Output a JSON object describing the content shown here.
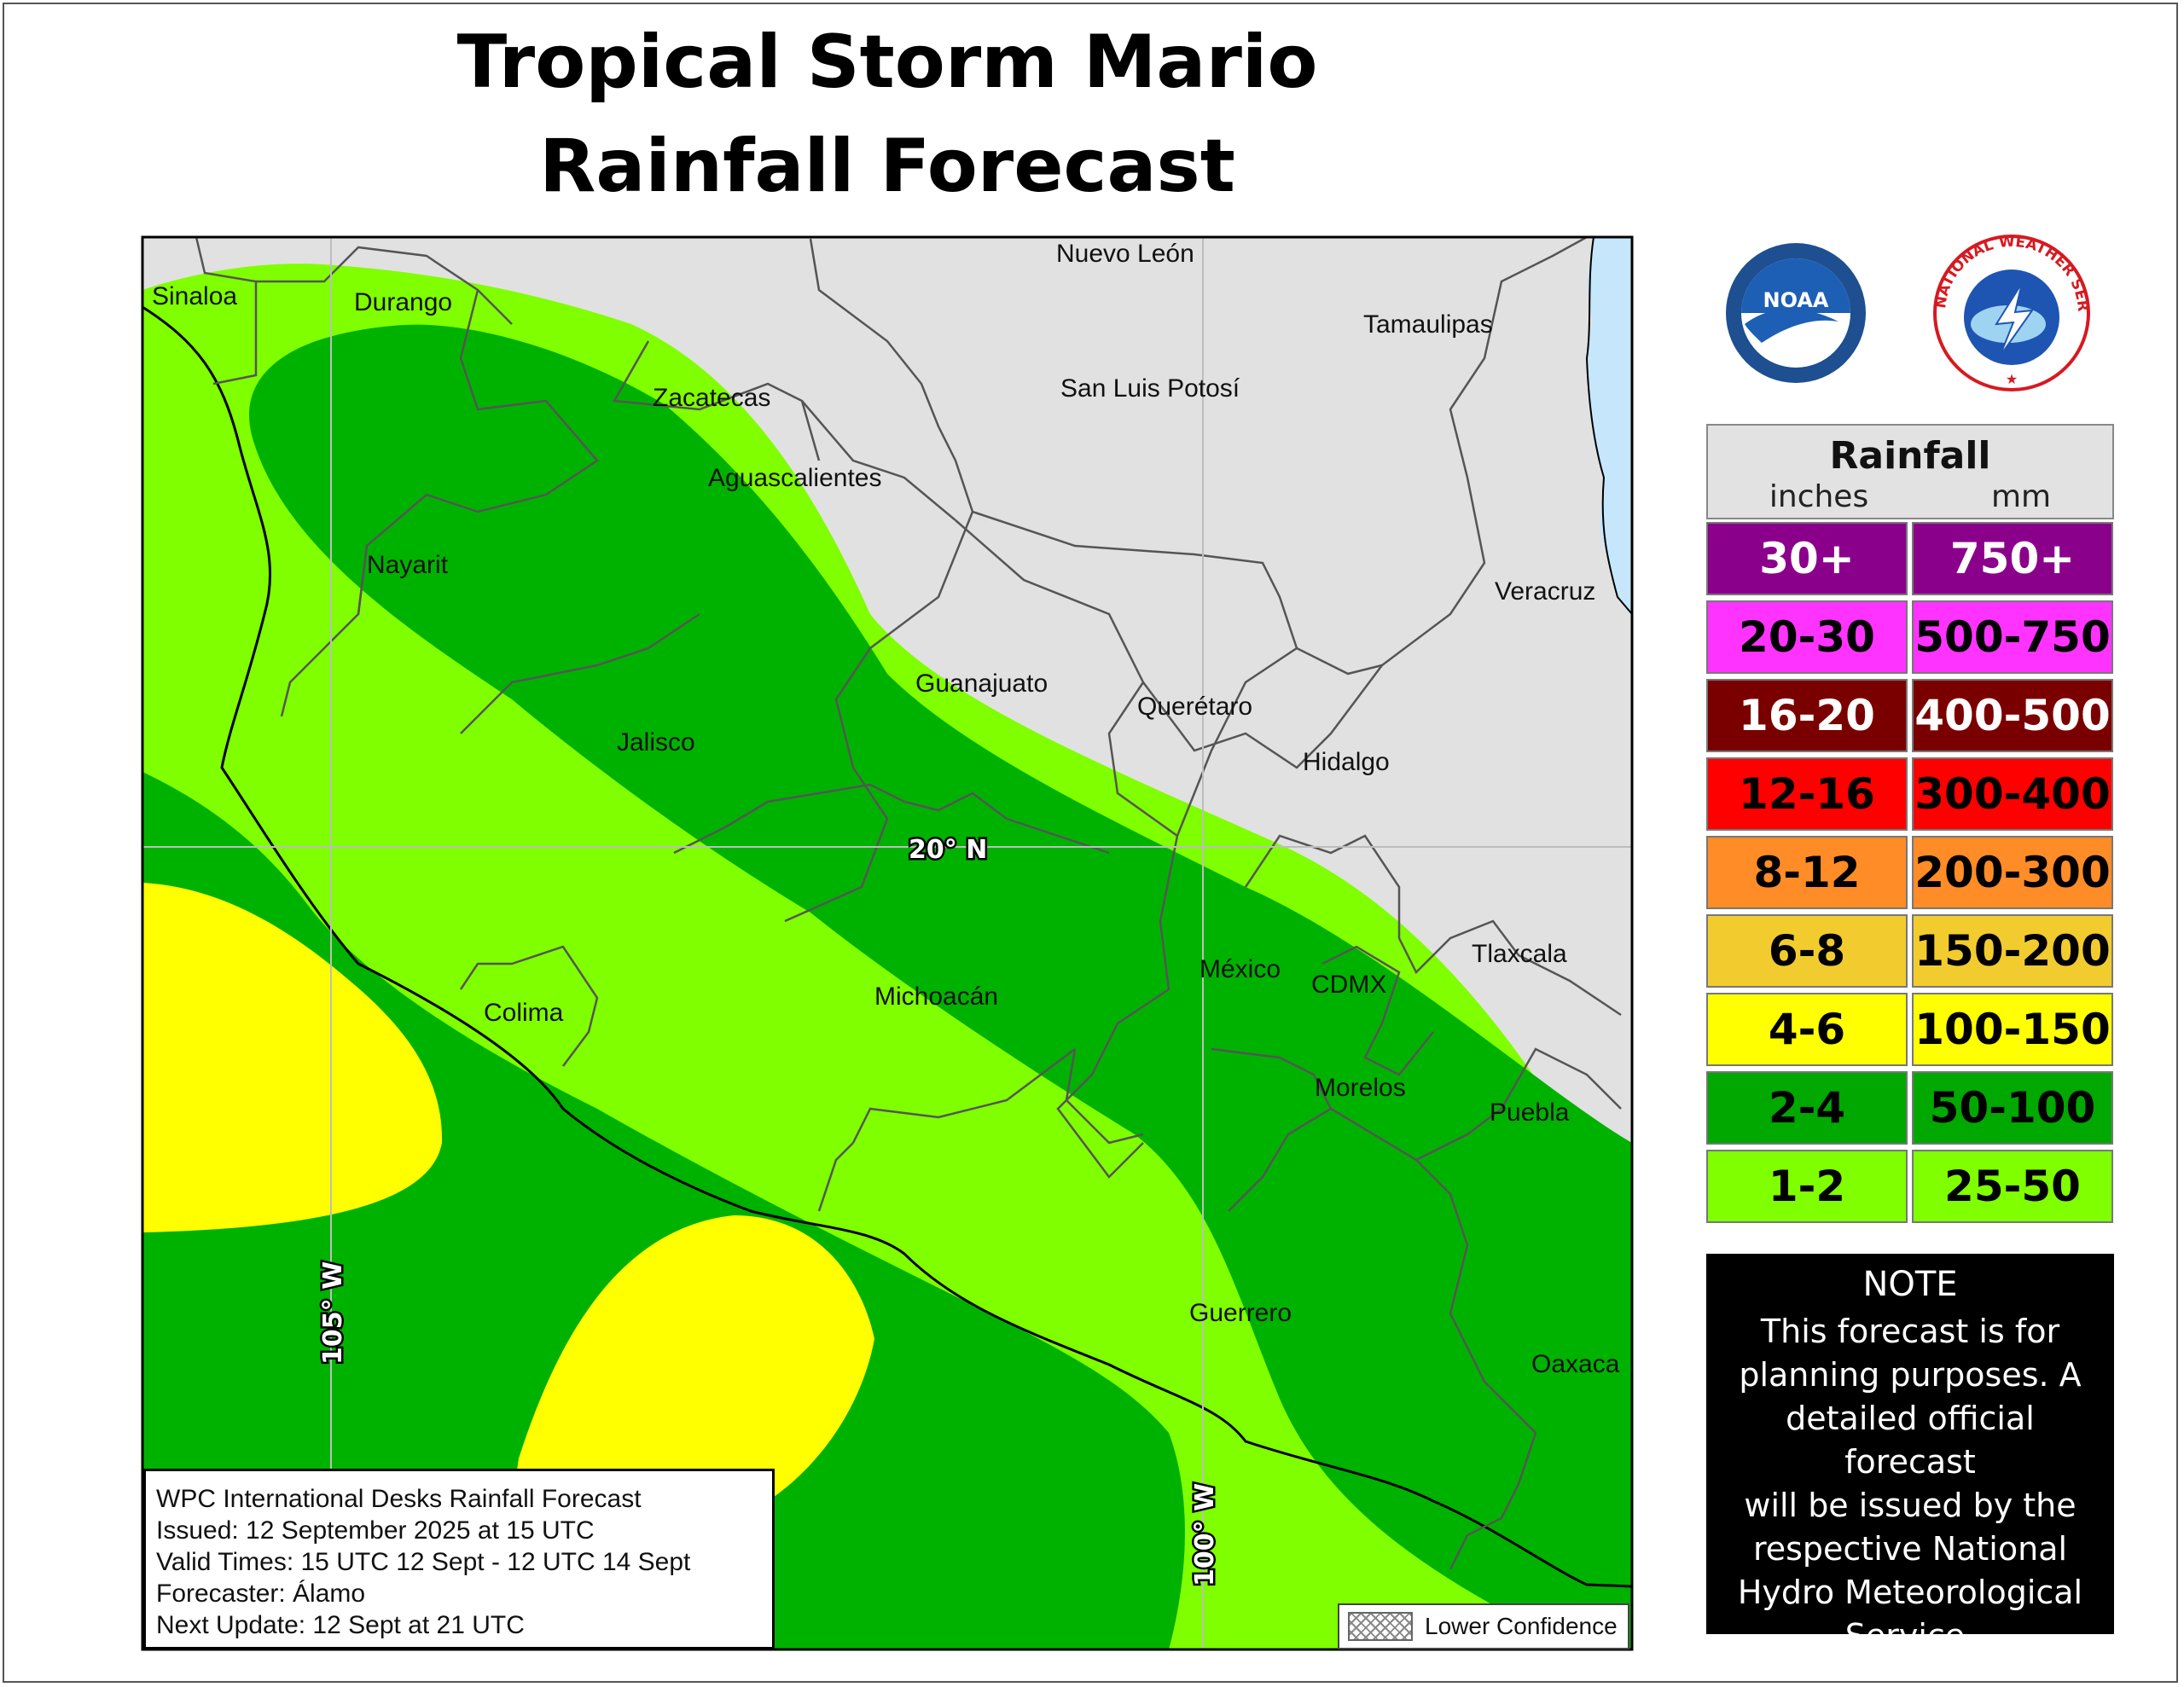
{
  "title": {
    "line1": "Tropical Storm Mario",
    "line2": "Rainfall Forecast"
  },
  "map": {
    "states": [
      {
        "key": "sinaloa",
        "name": "Sinaloa"
      },
      {
        "key": "durango",
        "name": "Durango"
      },
      {
        "key": "nuevo-leon",
        "name": "Nuevo León"
      },
      {
        "key": "tamaulipas",
        "name": "Tamaulipas"
      },
      {
        "key": "zacatecas",
        "name": "Zacatecas"
      },
      {
        "key": "san-luis-potosi",
        "name": "San Luis Potosí"
      },
      {
        "key": "aguascalientes",
        "name": "Aguascalientes"
      },
      {
        "key": "nayarit",
        "name": "Nayarit"
      },
      {
        "key": "veracruz",
        "name": "Veracruz"
      },
      {
        "key": "guanajuato",
        "name": "Guanajuato"
      },
      {
        "key": "queretaro",
        "name": "Querétaro"
      },
      {
        "key": "jalisco",
        "name": "Jalisco"
      },
      {
        "key": "hidalgo",
        "name": "Hidalgo"
      },
      {
        "key": "tlaxcala",
        "name": "Tlaxcala"
      },
      {
        "key": "mexico",
        "name": "México"
      },
      {
        "key": "cdmx",
        "name": "CDMX"
      },
      {
        "key": "colima",
        "name": "Colima"
      },
      {
        "key": "michoacan",
        "name": "Michoacán"
      },
      {
        "key": "morelos",
        "name": "Morelos"
      },
      {
        "key": "puebla",
        "name": "Puebla"
      },
      {
        "key": "guerrero",
        "name": "Guerrero"
      },
      {
        "key": "oaxaca",
        "name": "Oaxaca"
      }
    ],
    "grid": {
      "lat_label": "20° N",
      "lon_label_105": "105° W",
      "lon_label_100": "100° W"
    },
    "colors": {
      "land_outside": "#e1e1e1",
      "ocean": "#c6e6fb",
      "band_1_2": "#7fff00",
      "band_2_4": "#00b200",
      "band_4_6": "#ffff00"
    }
  },
  "info": {
    "line1": "WPC International Desks Rainfall Forecast",
    "line2": "Issued: 12 September 2025 at 15 UTC",
    "line3": "Valid Times: 15 UTC 12 Sept - 12 UTC 14 Sept",
    "line4": "Forecaster: Álamo",
    "line5": "Next Update: 12 Sept at 21 UTC"
  },
  "confidence_label": "Lower Confidence",
  "logos": {
    "noaa_text": "NOAA",
    "nws_text": "NATIONAL WEATHER SERVICE"
  },
  "legend": {
    "title": "Rainfall",
    "unit_inches": "inches",
    "unit_mm": "mm",
    "rows": [
      {
        "inches": "30+",
        "mm": "750+",
        "color": "#8b008b",
        "text_color": "#ffffff"
      },
      {
        "inches": "20-30",
        "mm": "500-750",
        "color": "#ff33ff",
        "text_color": "#000000"
      },
      {
        "inches": "16-20",
        "mm": "400-500",
        "color": "#7a0000",
        "text_color": "#ffffff"
      },
      {
        "inches": "12-16",
        "mm": "300-400",
        "color": "#ff0000",
        "text_color": "#000000"
      },
      {
        "inches": "8-12",
        "mm": "200-300",
        "color": "#ff8c26",
        "text_color": "#000000"
      },
      {
        "inches": "6-8",
        "mm": "150-200",
        "color": "#f2cc2e",
        "text_color": "#000000"
      },
      {
        "inches": "4-6",
        "mm": "100-150",
        "color": "#ffff00",
        "text_color": "#000000"
      },
      {
        "inches": "2-4",
        "mm": "50-100",
        "color": "#00a800",
        "text_color": "#000000"
      },
      {
        "inches": "1-2",
        "mm": "25-50",
        "color": "#7fff00",
        "text_color": "#000000"
      }
    ]
  },
  "note": {
    "heading": "NOTE",
    "lines": [
      "This forecast is for",
      "planning purposes. A",
      "detailed official forecast",
      "will be issued by the",
      "respective National",
      "Hydro Meteorological",
      "Service."
    ]
  }
}
